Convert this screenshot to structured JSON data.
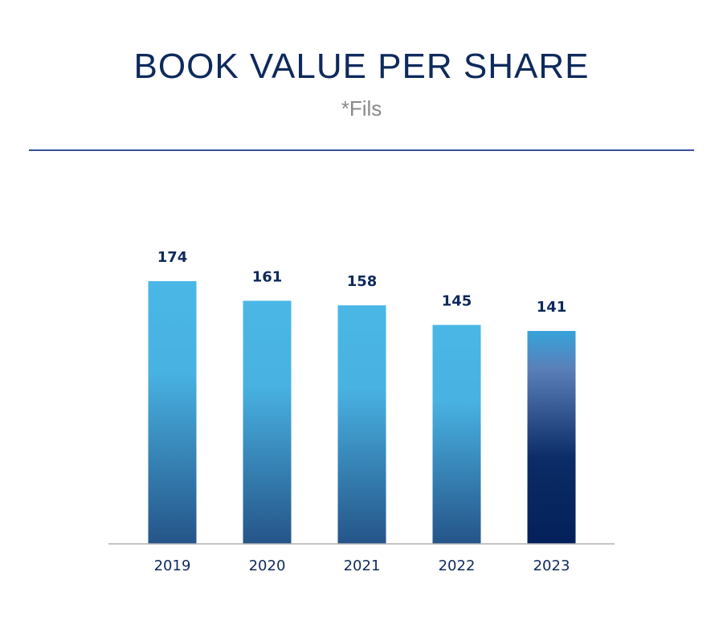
{
  "header": {
    "title": "BOOK VALUE PER SHARE",
    "subtitle": "*Fils"
  },
  "colors": {
    "title": "#0e2a5c",
    "subtitle": "#8a8a8a",
    "rule": "#3a4f9a",
    "bar_top": "#4ab7e6",
    "bar_bottom": "#255488",
    "highlight_top": "#36a3da",
    "highlight_bottom": "#04205a",
    "axis": "#b0b0b0"
  },
  "chart_data": {
    "type": "bar",
    "title": "BOOK VALUE PER SHARE",
    "subtitle": "*Fils",
    "categories": [
      "2019",
      "2020",
      "2021",
      "2022",
      "2023"
    ],
    "values": [
      174,
      161,
      158,
      145,
      141
    ],
    "data_labels": [
      "174",
      "161",
      "158",
      "145",
      "141"
    ],
    "highlight_index": 4,
    "xlabel": "",
    "ylabel": "",
    "ylim": [
      0,
      174
    ],
    "grid": false,
    "legend": "none"
  }
}
